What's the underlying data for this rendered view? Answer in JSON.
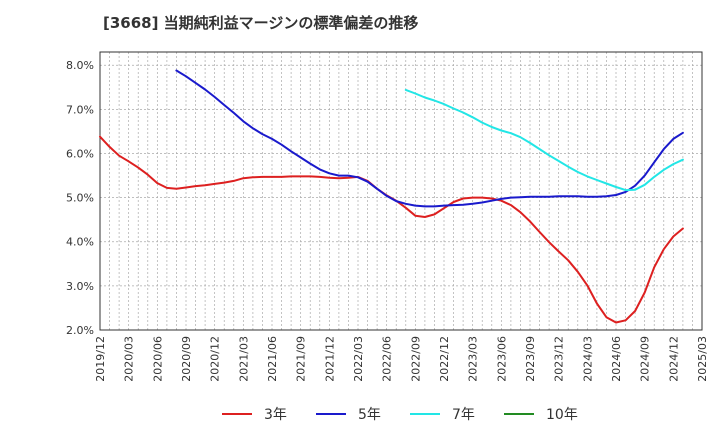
{
  "chart_data": {
    "type": "line",
    "title": "[3668]  当期純利益マージンの標準偏差の推移",
    "xlabel": "",
    "ylabel": "",
    "ylim": [
      2.0,
      8.3
    ],
    "yticks": [
      "2.0%",
      "3.0%",
      "4.0%",
      "5.0%",
      "6.0%",
      "7.0%",
      "8.0%"
    ],
    "ytick_values": [
      2.0,
      3.0,
      4.0,
      5.0,
      6.0,
      7.0,
      8.0
    ],
    "xticks": [
      "2019/12",
      "2020/03",
      "2020/06",
      "2020/09",
      "2020/12",
      "2021/03",
      "2021/06",
      "2021/09",
      "2021/12",
      "2022/03",
      "2022/06",
      "2022/09",
      "2022/12",
      "2023/03",
      "2023/06",
      "2023/09",
      "2023/12",
      "2024/03",
      "2024/06",
      "2024/09",
      "2024/12",
      "2025/03"
    ],
    "grid": true,
    "legend_position": "bottom",
    "series": [
      {
        "name": "3年",
        "color": "#dd2020",
        "points": [
          [
            "2019/12",
            6.38
          ],
          [
            "2020/01",
            6.15
          ],
          [
            "2020/02",
            5.95
          ],
          [
            "2020/03",
            5.82
          ],
          [
            "2020/04",
            5.68
          ],
          [
            "2020/05",
            5.52
          ],
          [
            "2020/06",
            5.33
          ],
          [
            "2020/07",
            5.22
          ],
          [
            "2020/08",
            5.2
          ],
          [
            "2020/09",
            5.23
          ],
          [
            "2020/10",
            5.26
          ],
          [
            "2020/11",
            5.28
          ],
          [
            "2020/12",
            5.31
          ],
          [
            "2021/01",
            5.34
          ],
          [
            "2021/02",
            5.38
          ],
          [
            "2021/03",
            5.44
          ],
          [
            "2021/04",
            5.46
          ],
          [
            "2021/05",
            5.47
          ],
          [
            "2021/06",
            5.47
          ],
          [
            "2021/07",
            5.47
          ],
          [
            "2021/08",
            5.48
          ],
          [
            "2021/09",
            5.48
          ],
          [
            "2021/10",
            5.48
          ],
          [
            "2021/11",
            5.47
          ],
          [
            "2021/12",
            5.45
          ],
          [
            "2022/01",
            5.44
          ],
          [
            "2022/02",
            5.45
          ],
          [
            "2022/03",
            5.47
          ],
          [
            "2022/04",
            5.38
          ],
          [
            "2022/05",
            5.2
          ],
          [
            "2022/06",
            5.05
          ],
          [
            "2022/07",
            4.93
          ],
          [
            "2022/08",
            4.77
          ],
          [
            "2022/09",
            4.59
          ],
          [
            "2022/10",
            4.56
          ],
          [
            "2022/11",
            4.62
          ],
          [
            "2022/12",
            4.76
          ],
          [
            "2023/01",
            4.9
          ],
          [
            "2023/02",
            4.98
          ],
          [
            "2023/03",
            5.0
          ],
          [
            "2023/04",
            5.0
          ],
          [
            "2023/05",
            4.98
          ],
          [
            "2023/06",
            4.93
          ],
          [
            "2023/07",
            4.83
          ],
          [
            "2023/08",
            4.67
          ],
          [
            "2023/09",
            4.46
          ],
          [
            "2023/10",
            4.22
          ],
          [
            "2023/11",
            3.99
          ],
          [
            "2023/12",
            3.78
          ],
          [
            "2024/01",
            3.58
          ],
          [
            "2024/02",
            3.32
          ],
          [
            "2024/03",
            3.01
          ],
          [
            "2024/04",
            2.6
          ],
          [
            "2024/05",
            2.29
          ],
          [
            "2024/06",
            2.17
          ],
          [
            "2024/07",
            2.22
          ],
          [
            "2024/08",
            2.43
          ],
          [
            "2024/09",
            2.85
          ],
          [
            "2024/10",
            3.42
          ],
          [
            "2024/11",
            3.83
          ],
          [
            "2024/12",
            4.12
          ],
          [
            "2025/01",
            4.3
          ]
        ]
      },
      {
        "name": "5年",
        "color": "#1a1acc",
        "points": [
          [
            "2020/08",
            7.88
          ],
          [
            "2020/09",
            7.75
          ],
          [
            "2020/10",
            7.6
          ],
          [
            "2020/11",
            7.45
          ],
          [
            "2020/12",
            7.28
          ],
          [
            "2021/01",
            7.1
          ],
          [
            "2021/02",
            6.92
          ],
          [
            "2021/03",
            6.73
          ],
          [
            "2021/04",
            6.57
          ],
          [
            "2021/05",
            6.44
          ],
          [
            "2021/06",
            6.33
          ],
          [
            "2021/07",
            6.2
          ],
          [
            "2021/08",
            6.05
          ],
          [
            "2021/09",
            5.91
          ],
          [
            "2021/10",
            5.77
          ],
          [
            "2021/11",
            5.64
          ],
          [
            "2021/12",
            5.55
          ],
          [
            "2022/01",
            5.5
          ],
          [
            "2022/02",
            5.5
          ],
          [
            "2022/03",
            5.46
          ],
          [
            "2022/04",
            5.36
          ],
          [
            "2022/05",
            5.2
          ],
          [
            "2022/06",
            5.04
          ],
          [
            "2022/07",
            4.92
          ],
          [
            "2022/08",
            4.86
          ],
          [
            "2022/09",
            4.82
          ],
          [
            "2022/10",
            4.8
          ],
          [
            "2022/11",
            4.8
          ],
          [
            "2022/12",
            4.82
          ],
          [
            "2023/01",
            4.83
          ],
          [
            "2023/02",
            4.84
          ],
          [
            "2023/03",
            4.86
          ],
          [
            "2023/04",
            4.89
          ],
          [
            "2023/05",
            4.93
          ],
          [
            "2023/06",
            4.97
          ],
          [
            "2023/07",
            5.0
          ],
          [
            "2023/08",
            5.01
          ],
          [
            "2023/09",
            5.02
          ],
          [
            "2023/10",
            5.02
          ],
          [
            "2023/11",
            5.02
          ],
          [
            "2023/12",
            5.03
          ],
          [
            "2024/01",
            5.03
          ],
          [
            "2024/02",
            5.03
          ],
          [
            "2024/03",
            5.02
          ],
          [
            "2024/04",
            5.02
          ],
          [
            "2024/05",
            5.03
          ],
          [
            "2024/06",
            5.06
          ],
          [
            "2024/07",
            5.13
          ],
          [
            "2024/08",
            5.27
          ],
          [
            "2024/09",
            5.5
          ],
          [
            "2024/10",
            5.8
          ],
          [
            "2024/11",
            6.1
          ],
          [
            "2024/12",
            6.33
          ],
          [
            "2025/01",
            6.47
          ]
        ]
      },
      {
        "name": "7年",
        "color": "#22e6e6",
        "points": [
          [
            "2022/08",
            7.44
          ],
          [
            "2022/09",
            7.36
          ],
          [
            "2022/10",
            7.27
          ],
          [
            "2022/11",
            7.2
          ],
          [
            "2022/12",
            7.12
          ],
          [
            "2023/01",
            7.02
          ],
          [
            "2023/02",
            6.93
          ],
          [
            "2023/03",
            6.82
          ],
          [
            "2023/04",
            6.7
          ],
          [
            "2023/05",
            6.6
          ],
          [
            "2023/06",
            6.52
          ],
          [
            "2023/07",
            6.46
          ],
          [
            "2023/08",
            6.37
          ],
          [
            "2023/09",
            6.24
          ],
          [
            "2023/10",
            6.1
          ],
          [
            "2023/11",
            5.96
          ],
          [
            "2023/12",
            5.83
          ],
          [
            "2024/01",
            5.7
          ],
          [
            "2024/02",
            5.58
          ],
          [
            "2024/03",
            5.48
          ],
          [
            "2024/04",
            5.4
          ],
          [
            "2024/05",
            5.32
          ],
          [
            "2024/06",
            5.24
          ],
          [
            "2024/07",
            5.17
          ],
          [
            "2024/08",
            5.18
          ],
          [
            "2024/09",
            5.29
          ],
          [
            "2024/10",
            5.47
          ],
          [
            "2024/11",
            5.63
          ],
          [
            "2024/12",
            5.76
          ],
          [
            "2025/01",
            5.86
          ]
        ]
      },
      {
        "name": "10年",
        "color": "#228b22",
        "points": []
      }
    ]
  }
}
